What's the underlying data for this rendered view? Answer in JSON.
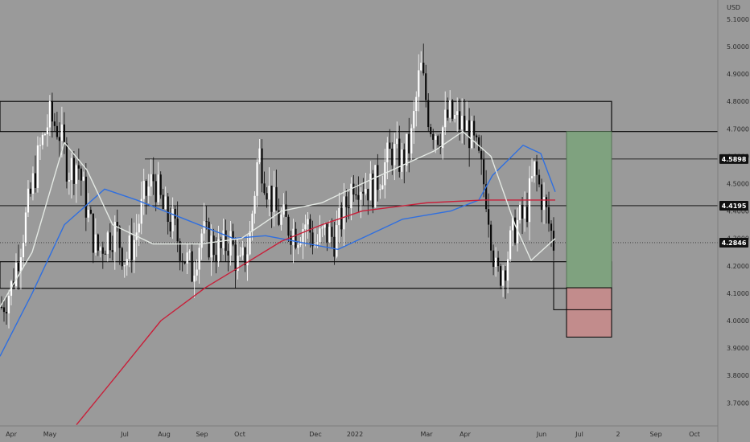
{
  "chart_data": {
    "type": "candlestick",
    "currency": "USD",
    "ylim": [
      3.65,
      5.15
    ],
    "y_ticks": [
      "5.1000",
      "5.0000",
      "4.9000",
      "4.8000",
      "4.7000",
      "4.6000",
      "4.5000",
      "4.4000",
      "4.3000",
      "4.2000",
      "4.1000",
      "4.0000",
      "3.9000",
      "3.8000",
      "3.7000"
    ],
    "x_ticks": [
      "Apr",
      "May",
      "Jul",
      "Aug",
      "Sep",
      "Oct",
      "Dec",
      "2022",
      "Mar",
      "Apr",
      "Jun",
      "Jul",
      "2",
      "Sep",
      "Oct"
    ],
    "price_labels": [
      {
        "value": 4.5898,
        "label": "4.5898"
      },
      {
        "value": 4.4195,
        "label": "4.4195"
      },
      {
        "value": 4.2846,
        "label": "4.2846"
      }
    ],
    "horizontal_levels": [
      4.8,
      4.69,
      4.5898,
      4.4195,
      4.215,
      4.118
    ],
    "current_price": 4.2846,
    "position_box": {
      "target": 4.69,
      "entry": 4.12,
      "stop": 3.94
    },
    "close_series": [
      4.05,
      4.12,
      4.28,
      4.45,
      4.62,
      4.74,
      4.7,
      4.55,
      4.58,
      4.4,
      4.25,
      4.3,
      4.33,
      4.22,
      4.3,
      4.45,
      4.52,
      4.4,
      4.35,
      4.25,
      4.18,
      4.32,
      4.28,
      4.25,
      4.3,
      4.18,
      4.28,
      4.62,
      4.48,
      4.38,
      4.35,
      4.32,
      4.36,
      4.28,
      4.32,
      4.3,
      4.4,
      4.52,
      4.5,
      4.48,
      4.55,
      4.62,
      4.58,
      4.65,
      4.93,
      4.72,
      4.68,
      4.75,
      4.72,
      4.7,
      4.6,
      4.45,
      4.15,
      4.22,
      4.35,
      4.38,
      4.55,
      4.42,
      4.2846
    ],
    "ma_series": [
      {
        "name": "",
        "color": "#2f6fe0",
        "values": [
          3.87,
          4.1,
          4.35,
          4.48,
          4.44,
          4.37,
          4.3,
          4.31,
          4.26,
          4.37,
          4.4,
          4.44,
          4.53,
          4.64,
          4.61,
          4.47
        ]
      },
      {
        "name": "",
        "color": "#c8203a",
        "values": [
          3.62,
          3.8,
          4.0,
          4.12,
          4.2,
          4.29,
          4.35,
          4.4,
          4.43,
          4.44,
          4.44
        ]
      },
      {
        "name": "",
        "color": "#e4e9e4",
        "values": [
          4.05,
          4.25,
          4.65,
          4.55,
          4.35,
          4.28,
          4.28,
          4.3,
          4.4,
          4.43,
          4.5,
          4.62,
          4.69,
          4.6,
          4.35,
          4.22,
          4.3
        ]
      }
    ]
  }
}
